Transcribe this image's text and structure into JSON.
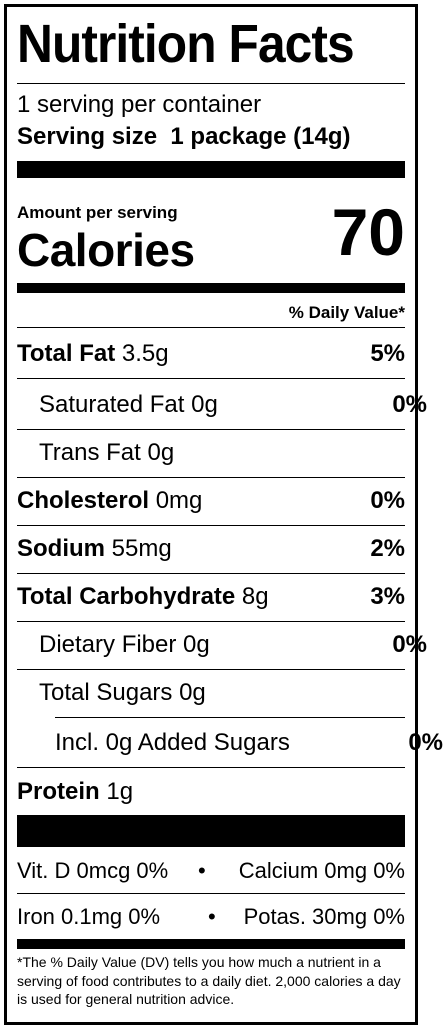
{
  "title": "Nutrition Facts",
  "servings_per_container": "1 serving per container",
  "serving_size_label": "Serving size",
  "serving_size_value": "1 package (14g)",
  "amount_per_serving": "Amount per serving",
  "calories_label": "Calories",
  "calories_value": "70",
  "daily_value_header": "% Daily Value*",
  "nutrients": [
    {
      "name": "Total Fat",
      "amount": "3.5g",
      "dv": "5%"
    },
    {
      "name": "Saturated Fat",
      "amount": "0g",
      "dv": "0%"
    },
    {
      "name": "Trans Fat",
      "amount": "0g",
      "dv": ""
    },
    {
      "name": "Cholesterol",
      "amount": "0mg",
      "dv": "0%"
    },
    {
      "name": "Sodium",
      "amount": "55mg",
      "dv": "2%"
    },
    {
      "name": "Total Carbohydrate",
      "amount": "8g",
      "dv": "3%"
    },
    {
      "name": "Dietary Fiber",
      "amount": "0g",
      "dv": "0%"
    },
    {
      "name": "Total Sugars",
      "amount": "0g",
      "dv": ""
    },
    {
      "name": "Incl. 0g Added Sugars",
      "amount": "",
      "dv": "0%"
    },
    {
      "name": "Protein",
      "amount": "1g",
      "dv": ""
    }
  ],
  "vitamins": {
    "row1_left": "Vit. D 0mcg 0%",
    "row1_right": "Calcium 0mg 0%",
    "row2_left": "Iron 0.1mg 0%",
    "row2_right": "Potas. 30mg 0%",
    "separator": "•"
  },
  "footnote": "*The % Daily Value (DV) tells you how much a nutrient in a serving of food contributes to a daily diet. 2,000 calories a day is used for general nutrition advice."
}
